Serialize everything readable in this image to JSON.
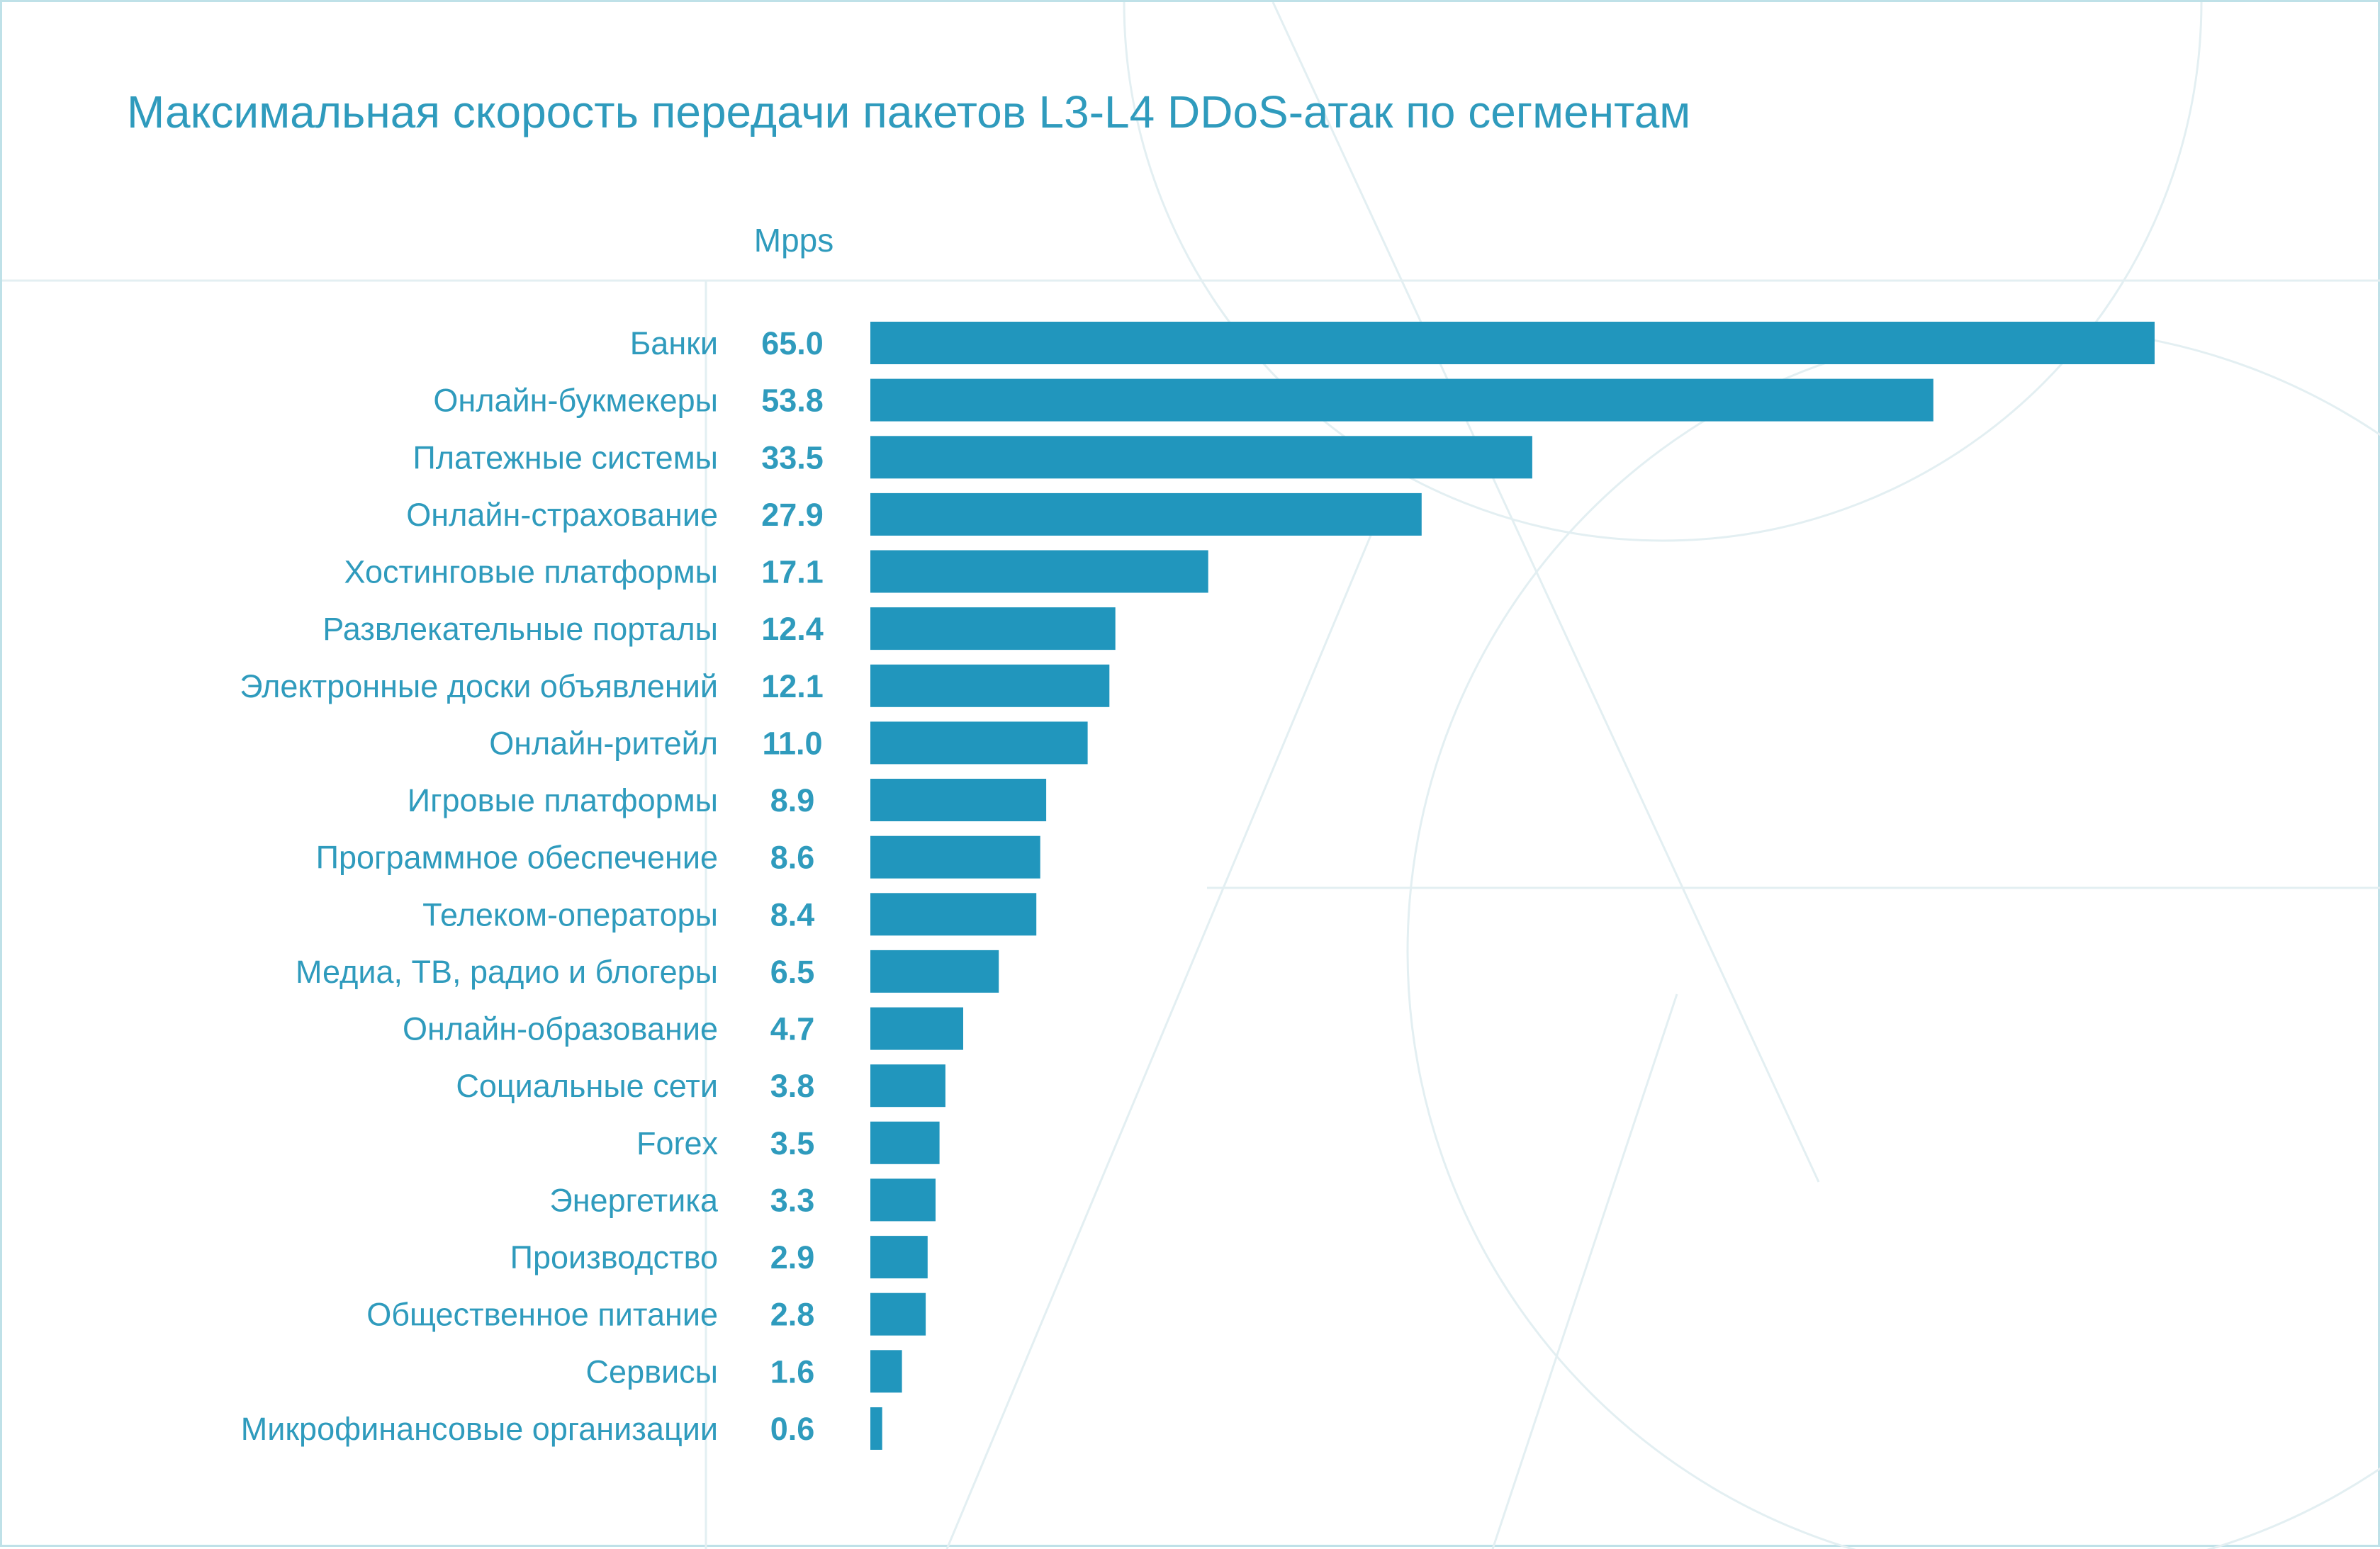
{
  "colors": {
    "bar": "#2196bd",
    "text": "#2f9bbd",
    "frame": "#bfe1e8",
    "decor": "#e3eff2"
  },
  "chart_data": {
    "type": "bar",
    "orientation": "horizontal",
    "title": "Максимальная скорость передачи пакетов L3-L4 DDoS-атак по сегментам",
    "value_label_header": "Mpps",
    "categories": [
      "Банки",
      "Онлайн-букмекеры",
      "Платежные системы",
      "Онлайн-страхование",
      "Хостинговые платформы",
      "Развлекательные порталы",
      "Электронные доски объявлений",
      "Онлайн-ритейл",
      "Игровые платформы",
      "Программное обеспечение",
      "Телеком-операторы",
      "Медиа, ТВ, радио и блогеры",
      "Онлайн-образование",
      "Социальные сети",
      "Forex",
      "Энергетика",
      "Производство",
      "Общественное питание",
      "Сервисы",
      "Микрофинансовые организации"
    ],
    "values": [
      65.0,
      53.8,
      33.5,
      27.9,
      17.1,
      12.4,
      12.1,
      11.0,
      8.9,
      8.6,
      8.4,
      6.5,
      4.7,
      3.8,
      3.5,
      3.3,
      2.9,
      2.8,
      1.6,
      0.6
    ],
    "value_labels": [
      "65.0",
      "53.8",
      "33.5",
      "27.9",
      "17.1",
      "12.4",
      "12.1",
      "11.0",
      "8.9",
      "8.6",
      "8.4",
      "6.5",
      "4.7",
      "3.8",
      "3.5",
      "3.3",
      "2.9",
      "2.8",
      "1.6",
      "0.6"
    ],
    "xlim": [
      0,
      65.0
    ],
    "grid": false,
    "legend": "none"
  }
}
